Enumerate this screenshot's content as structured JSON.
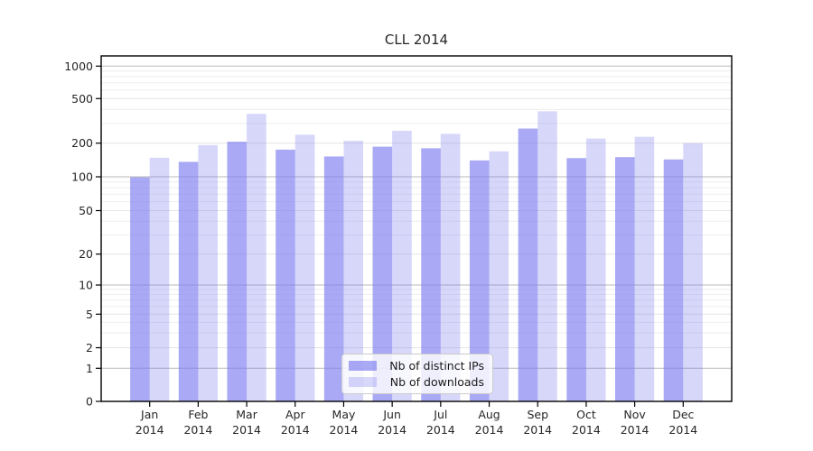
{
  "title": "CLL 2014",
  "colors": {
    "ips_fill": "rgba(124,124,240,0.66)",
    "downloads_fill": "rgba(124,124,240,0.30)",
    "grid_major": "#b9b9b9",
    "grid_mid": "#e4e4e4",
    "grid_minor": "#eeeeee",
    "axis": "#000000",
    "text": "#262626",
    "legend_border": "#cccccc",
    "legend_bg": "rgba(255,255,255,0.8)"
  },
  "chart_data": {
    "type": "bar",
    "title": "CLL 2014",
    "categories": [
      "Jan",
      "Feb",
      "Mar",
      "Apr",
      "May",
      "Jun",
      "Jul",
      "Aug",
      "Sep",
      "Oct",
      "Nov",
      "Dec"
    ],
    "category_year": "2014",
    "series": [
      {
        "name": "Nb of distinct IPs",
        "values": [
          99,
          136,
          206,
          175,
          152,
          186,
          180,
          140,
          270,
          147,
          150,
          143
        ]
      },
      {
        "name": "Nb of downloads",
        "values": [
          148,
          192,
          365,
          238,
          210,
          258,
          242,
          169,
          385,
          220,
          228,
          200
        ]
      }
    ],
    "xlabel": "",
    "ylabel": "",
    "yscale": "symlog",
    "y_ticks": [
      0,
      1,
      2,
      5,
      10,
      20,
      50,
      100,
      200,
      500,
      1000
    ],
    "y_minor_ticks": [
      3,
      4,
      6,
      7,
      8,
      9,
      30,
      40,
      60,
      70,
      80,
      90,
      300,
      400,
      600,
      700,
      800,
      900
    ],
    "ylim": [
      0,
      1250
    ],
    "grid": true,
    "legend_position": "lower center"
  }
}
